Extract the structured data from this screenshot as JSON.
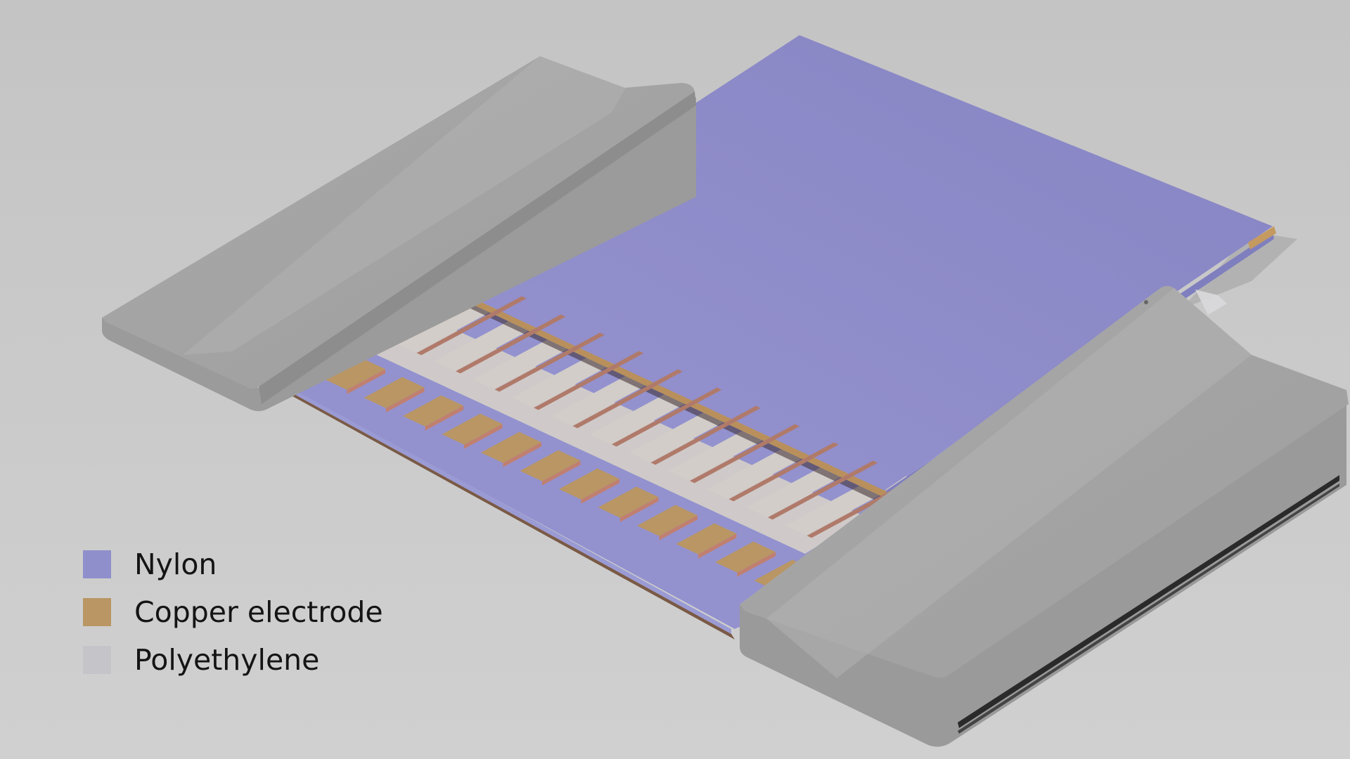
{
  "legend": {
    "items": [
      {
        "label": "Nylon",
        "color": "#8f8fcc"
      },
      {
        "label": "Copper electrode",
        "color": "#b99664"
      },
      {
        "label": "Polyethylene",
        "color": "#c4c4c9"
      }
    ]
  },
  "colors": {
    "background": "#c9c9c9",
    "holder": "#a8a8a8",
    "nylon": "#8f8fcc",
    "copper": "#b99664",
    "polyethylene": "#d2cdc8"
  }
}
